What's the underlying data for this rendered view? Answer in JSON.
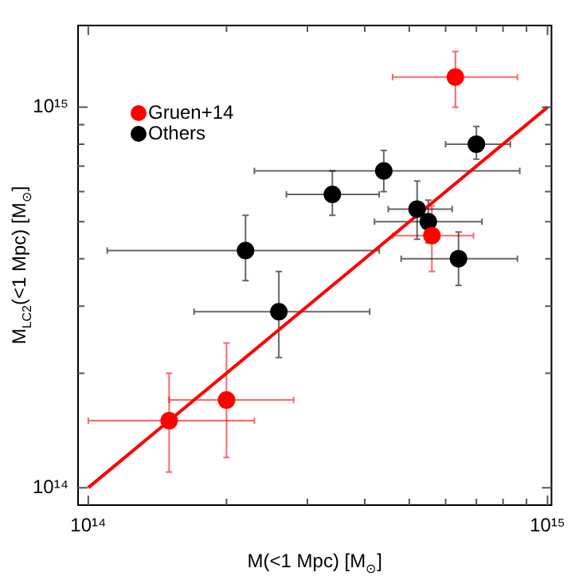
{
  "chart_data": {
    "type": "scatter",
    "xlabel": "M(<1 Mpc) [M$_{⊙}$]",
    "ylabel": "M$_{LC2}$(<1 Mpc) [M$_{⊙}$]",
    "log": "xy",
    "grid": false,
    "legend": "top left",
    "marker": "circle",
    "xlim": [
      95000000000000.0,
      1020000000000000.0
    ],
    "ylim": [
      90000000000000.0,
      1640000000000000.0
    ],
    "xticks": [
      {
        "value": 100000000000000.0,
        "label": "10¹⁴"
      },
      {
        "value": 200000000000000.0,
        "label": null
      },
      {
        "value": 300000000000000.0,
        "label": null
      },
      {
        "value": 400000000000000.0,
        "label": null
      },
      {
        "value": 500000000000000.0,
        "label": null
      },
      {
        "value": 600000000000000.0,
        "label": null
      },
      {
        "value": 700000000000000.0,
        "label": null
      },
      {
        "value": 800000000000000.0,
        "label": null
      },
      {
        "value": 900000000000000.0,
        "label": null
      },
      {
        "value": 1000000000000000.0,
        "label": "10¹⁵"
      }
    ],
    "yticks": [
      {
        "value": 100000000000000.0,
        "label": "10¹⁴"
      },
      {
        "value": 200000000000000.0,
        "label": null
      },
      {
        "value": 300000000000000.0,
        "label": null
      },
      {
        "value": 400000000000000.0,
        "label": null
      },
      {
        "value": 500000000000000.0,
        "label": null
      },
      {
        "value": 600000000000000.0,
        "label": null
      },
      {
        "value": 700000000000000.0,
        "label": null
      },
      {
        "value": 800000000000000.0,
        "label": null
      },
      {
        "value": 900000000000000.0,
        "label": null
      },
      {
        "value": 1000000000000000.0,
        "label": "10¹⁵"
      }
    ],
    "series": [
      {
        "type": "line",
        "color": "#ff0000",
        "x": [
          100000000000000.0,
          1000000000000000.0
        ],
        "values": [
          100000000000000.0,
          1000000000000000.0
        ],
        "marker": "none",
        "line_style": "solid"
      },
      {
        "name": "Gruen+14",
        "color": "#ff0000",
        "x": [
          630000000000000.0,
          560000000000000.0,
          150000000000000.0,
          200000000000000.0
        ],
        "values": [
          1200000000000000.0,
          460000000000000.0,
          150000000000000.0,
          170000000000000.0
        ],
        "xerrors": [
          [
            460000000000000.0,
            860000000000000.0
          ],
          [
            460000000000000.0,
            690000000000000.0
          ],
          [
            100000000000000.0,
            230000000000000.0
          ],
          [
            150000000000000.0,
            280000000000000.0
          ]
        ],
        "errors": [
          [
            1000000000000000.0,
            1400000000000000.0
          ],
          [
            370000000000000.0,
            550000000000000.0
          ],
          [
            110000000000000.0,
            200000000000000.0
          ],
          [
            120000000000000.0,
            240000000000000.0
          ]
        ]
      },
      {
        "name": "Others",
        "color": "#000000",
        "x": [
          700000000000000.0,
          440000000000000.0,
          340000000000000.0,
          520000000000000.0,
          550000000000000.0,
          640000000000000.0,
          220000000000000.0,
          260000000000000.0
        ],
        "values": [
          800000000000000.0,
          680000000000000.0,
          590000000000000.0,
          540000000000000.0,
          500000000000000.0,
          400000000000000.0,
          420000000000000.0,
          290000000000000.0
        ],
        "xerrors": [
          [
            600000000000000.0,
            830000000000000.0
          ],
          [
            230000000000000.0,
            870000000000000.0
          ],
          [
            270000000000000.0,
            430000000000000.0
          ],
          [
            450000000000000.0,
            620000000000000.0
          ],
          [
            420000000000000.0,
            720000000000000.0
          ],
          [
            480000000000000.0,
            860000000000000.0
          ],
          [
            110000000000000.0,
            430000000000000.0
          ],
          [
            170000000000000.0,
            410000000000000.0
          ]
        ],
        "errors": [
          [
            730000000000000.0,
            890000000000000.0
          ],
          [
            600000000000000.0,
            770000000000000.0
          ],
          [
            520000000000000.0,
            680000000000000.0
          ],
          [
            450000000000000.0,
            640000000000000.0
          ],
          [
            440000000000000.0,
            570000000000000.0
          ],
          [
            340000000000000.0,
            470000000000000.0
          ],
          [
            350000000000000.0,
            520000000000000.0
          ],
          [
            220000000000000.0,
            370000000000000.0
          ]
        ]
      }
    ]
  }
}
